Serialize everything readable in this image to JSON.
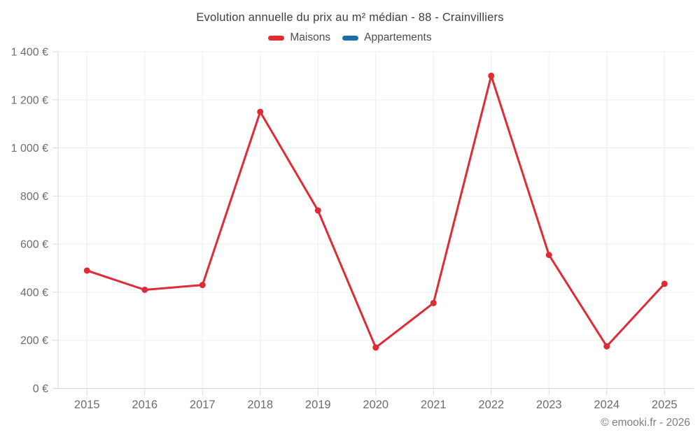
{
  "title": "Evolution annuelle du prix au m² médian - 88 - Crainvilliers",
  "legend": [
    {
      "label": "Maisons",
      "color": "#e02b35"
    },
    {
      "label": "Appartements",
      "color": "#1a6fa5"
    }
  ],
  "footer": {
    "copyright": "© emooki.fr - 2026"
  },
  "chart_data": {
    "type": "line",
    "title": "Evolution annuelle du prix au m² médian - 88 - Crainvilliers",
    "categories": [
      "2015",
      "2016",
      "2017",
      "2018",
      "2019",
      "2020",
      "2021",
      "2022",
      "2023",
      "2024",
      "2025"
    ],
    "series": [
      {
        "name": "Maisons",
        "color": "#e02b35",
        "values": [
          490,
          410,
          430,
          1150,
          740,
          170,
          355,
          1300,
          555,
          175,
          435
        ]
      },
      {
        "name": "Appartements",
        "color": "#1a6fa5",
        "values": []
      }
    ],
    "xlabel": "",
    "ylabel": "",
    "ylim": [
      0,
      1400
    ],
    "yticks": [
      {
        "value": 0,
        "label": "0 €"
      },
      {
        "value": 200,
        "label": "200 €"
      },
      {
        "value": 400,
        "label": "400 €"
      },
      {
        "value": 600,
        "label": "600 €"
      },
      {
        "value": 800,
        "label": "800 €"
      },
      {
        "value": 1000,
        "label": "1 000 €"
      },
      {
        "value": 1200,
        "label": "1 200 €"
      },
      {
        "value": 1400,
        "label": "1 400 €"
      }
    ],
    "grid": true,
    "legend_position": "top",
    "colors": {
      "grid": "#ededed",
      "axis": "#d9d9d9",
      "tick_label": "#6e6e6e"
    }
  }
}
